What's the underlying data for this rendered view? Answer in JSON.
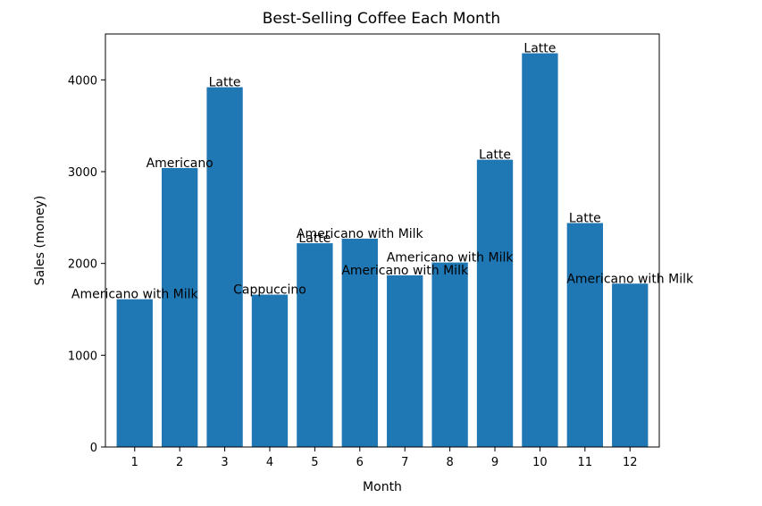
{
  "chart_data": {
    "type": "bar",
    "title": "Best-Selling Coffee Each Month",
    "xlabel": "Month",
    "ylabel": "Sales (money)",
    "categories": [
      "1",
      "2",
      "3",
      "4",
      "5",
      "6",
      "7",
      "8",
      "9",
      "10",
      "11",
      "12"
    ],
    "values": [
      1610,
      3040,
      3920,
      1660,
      2220,
      2270,
      1870,
      2010,
      3130,
      4290,
      2440,
      1780
    ],
    "bar_labels": [
      "Americano with Milk",
      "Americano",
      "Latte",
      "Cappuccino",
      "Latte",
      "Americano with Milk",
      "Americano with Milk",
      "Americano with Milk",
      "Latte",
      "Latte",
      "Latte",
      "Americano with Milk"
    ],
    "yticks": [
      0,
      1000,
      2000,
      3000,
      4000
    ],
    "ylim": [
      0,
      4500
    ],
    "bar_color": "#1f77b4",
    "grid": false
  }
}
